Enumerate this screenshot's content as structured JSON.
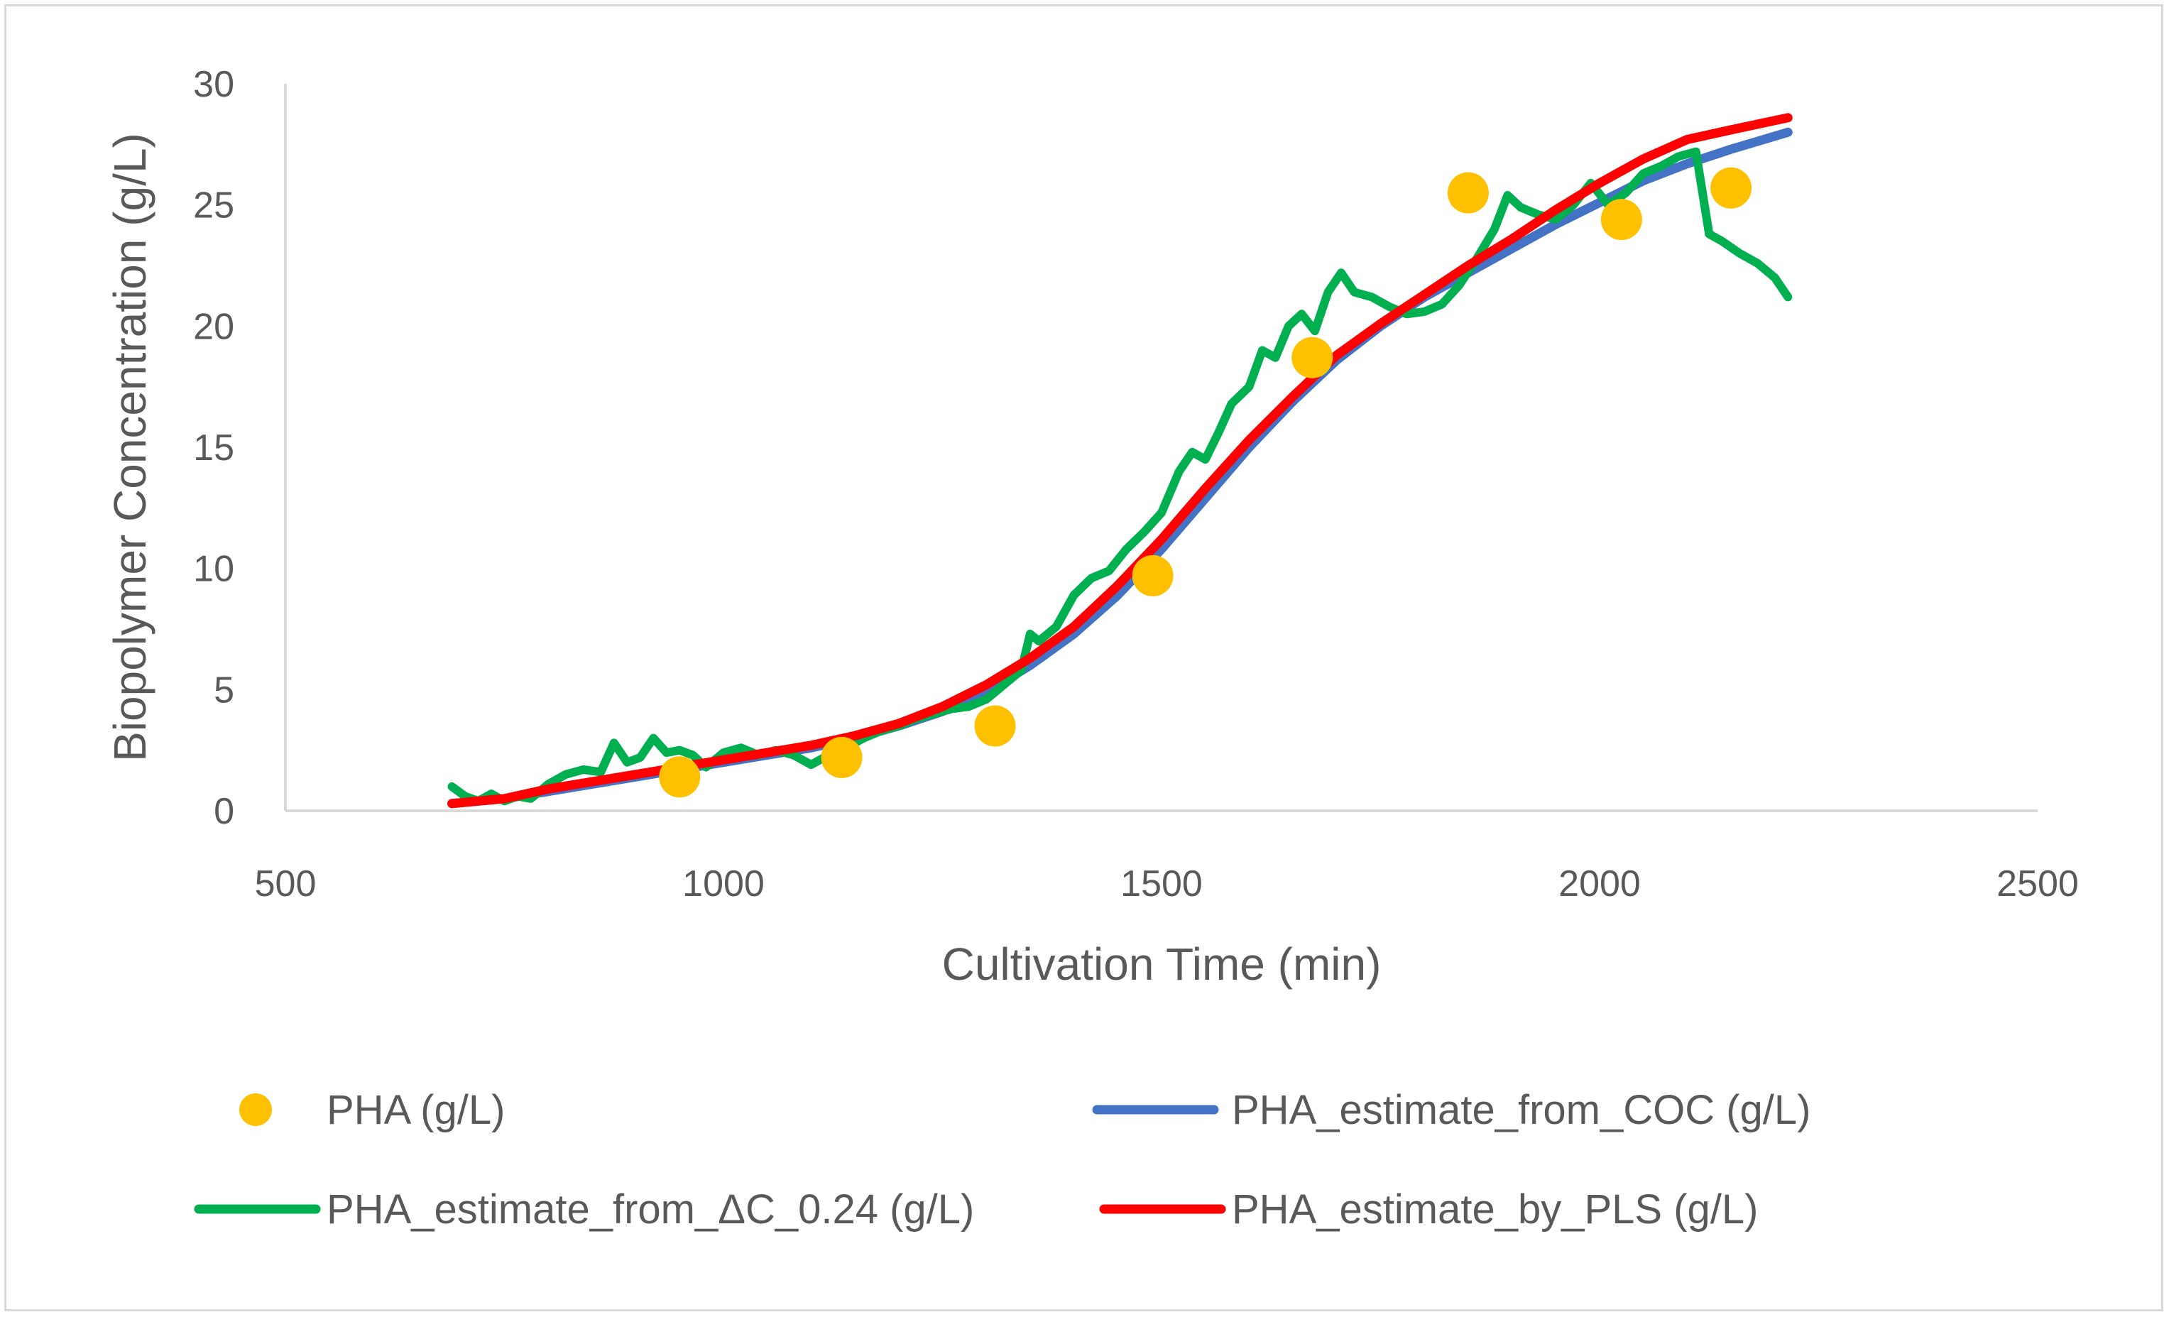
{
  "chart_data": {
    "type": "line",
    "title": "",
    "xlabel": "Cultivation Time (min)",
    "ylabel": "Biopolymer Concentration (g/L)",
    "xlim": [
      500,
      2500
    ],
    "ylim": [
      0,
      30
    ],
    "xticks": [
      500,
      1000,
      1500,
      2000,
      2500
    ],
    "yticks": [
      0,
      5,
      10,
      15,
      20,
      25,
      30
    ],
    "grid": false,
    "legend_position": "bottom",
    "series": [
      {
        "name": "PHA (g/L)",
        "kind": "scatter",
        "color": "#FFC000",
        "x": [
          950,
          1135,
          1310,
          1490,
          1672,
          1850,
          2025,
          2150
        ],
        "y": [
          1.4,
          2.2,
          3.5,
          9.7,
          18.7,
          25.5,
          24.4,
          25.7
        ]
      },
      {
        "name": "PHA_estimate_from_COC (g/L)",
        "kind": "line",
        "color": "#4472C4",
        "x": [
          690,
          750,
          800,
          850,
          900,
          950,
          1000,
          1050,
          1100,
          1150,
          1200,
          1250,
          1300,
          1350,
          1400,
          1450,
          1500,
          1550,
          1600,
          1650,
          1700,
          1750,
          1800,
          1850,
          1900,
          1950,
          2000,
          2050,
          2100,
          2150,
          2215
        ],
        "y": [
          0.3,
          0.5,
          0.8,
          1.1,
          1.4,
          1.7,
          2.0,
          2.3,
          2.6,
          3.0,
          3.5,
          4.1,
          4.9,
          6.0,
          7.3,
          8.9,
          10.8,
          12.9,
          15.0,
          16.9,
          18.6,
          20.0,
          21.2,
          22.2,
          23.2,
          24.2,
          25.1,
          26.0,
          26.7,
          27.3,
          28.0
        ]
      },
      {
        "name": "PHA_estimate_from_ΔC_0.24 (g/L)",
        "kind": "line",
        "color": "#00B050",
        "x": [
          690,
          705,
          720,
          735,
          750,
          765,
          780,
          800,
          820,
          840,
          860,
          875,
          890,
          905,
          920,
          935,
          950,
          965,
          980,
          1000,
          1020,
          1040,
          1060,
          1080,
          1100,
          1120,
          1140,
          1160,
          1180,
          1200,
          1220,
          1240,
          1260,
          1280,
          1300,
          1320,
          1340,
          1350,
          1360,
          1380,
          1400,
          1420,
          1440,
          1460,
          1480,
          1500,
          1520,
          1535,
          1550,
          1565,
          1580,
          1600,
          1615,
          1630,
          1645,
          1660,
          1675,
          1690,
          1705,
          1720,
          1740,
          1760,
          1780,
          1800,
          1820,
          1840,
          1860,
          1880,
          1895,
          1910,
          1930,
          1950,
          1970,
          1990,
          2010,
          2030,
          2050,
          2070,
          2090,
          2110,
          2125,
          2140,
          2160,
          2180,
          2200,
          2215
        ],
        "y": [
          1.0,
          0.6,
          0.4,
          0.7,
          0.4,
          0.6,
          0.5,
          1.1,
          1.5,
          1.7,
          1.6,
          2.8,
          2.0,
          2.2,
          3.0,
          2.4,
          2.5,
          2.3,
          1.8,
          2.4,
          2.6,
          2.3,
          2.5,
          2.3,
          1.9,
          2.3,
          2.6,
          3.0,
          3.3,
          3.5,
          3.8,
          4.0,
          4.2,
          4.3,
          4.6,
          5.2,
          5.8,
          7.3,
          7.0,
          7.6,
          8.9,
          9.6,
          9.9,
          10.8,
          11.5,
          12.3,
          14.0,
          14.8,
          14.5,
          15.6,
          16.8,
          17.5,
          19.0,
          18.7,
          20.0,
          20.5,
          19.8,
          21.4,
          22.2,
          21.4,
          21.2,
          20.8,
          20.5,
          20.6,
          20.9,
          21.7,
          22.8,
          24.0,
          25.4,
          24.9,
          24.6,
          24.4,
          25.0,
          25.9,
          25.0,
          25.5,
          26.3,
          26.6,
          27.0,
          27.2,
          23.8,
          23.5,
          23.0,
          22.6,
          22.0,
          21.2
        ]
      },
      {
        "name": "PHA_estimate_by_PLS (g/L)",
        "kind": "line",
        "color": "#FF0000",
        "x": [
          690,
          750,
          800,
          850,
          900,
          950,
          1000,
          1050,
          1100,
          1150,
          1200,
          1250,
          1300,
          1350,
          1400,
          1450,
          1500,
          1550,
          1600,
          1650,
          1700,
          1750,
          1800,
          1850,
          1900,
          1950,
          2000,
          2050,
          2100,
          2150,
          2215
        ],
        "y": [
          0.3,
          0.5,
          0.9,
          1.2,
          1.5,
          1.8,
          2.1,
          2.4,
          2.7,
          3.1,
          3.6,
          4.3,
          5.2,
          6.3,
          7.6,
          9.3,
          11.2,
          13.3,
          15.3,
          17.1,
          18.8,
          20.1,
          21.3,
          22.5,
          23.6,
          24.8,
          25.9,
          26.9,
          27.7,
          28.1,
          28.6
        ]
      }
    ]
  }
}
